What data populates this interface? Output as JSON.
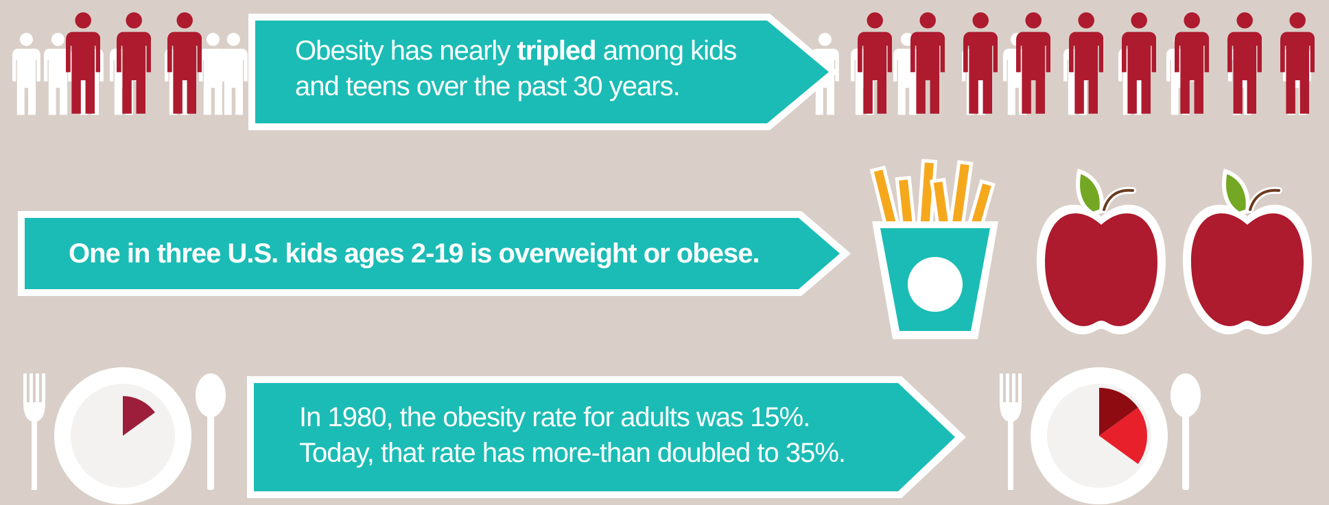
{
  "banners": {
    "top": {
      "line1_pre": "Obesity has nearly ",
      "line1_bold": "tripled",
      "line1_post": " among kids",
      "line2": "and teens over the past 30 years."
    },
    "middle": {
      "text": "One in three U.S. kids ages 2-19 is overweight or obese."
    },
    "bottom": {
      "line1": "In 1980, the obesity rate for adults was 15%.",
      "line2": "Today, that rate has more-than doubled to 35%."
    }
  },
  "obesity_rates": {
    "rate_1980_pct": 15,
    "rate_today_pct": 35
  },
  "colors": {
    "background": "#d9cfc8",
    "banner_teal": "#1bbcb5",
    "obese_red": "#ae1a2e",
    "pie_1980": "#9d1e3a",
    "pie_today_dark": "#8e0b12",
    "pie_today_light": "#e8202b",
    "fries_yellow": "#f6a81c",
    "apple_leaf": "#74a824"
  },
  "icons": {
    "people": "person-icon",
    "fries": "french-fries-icon",
    "apple": "apple-icon",
    "plate": "plate-pie-icon",
    "fork": "fork-icon",
    "spoon": "spoon-icon"
  }
}
